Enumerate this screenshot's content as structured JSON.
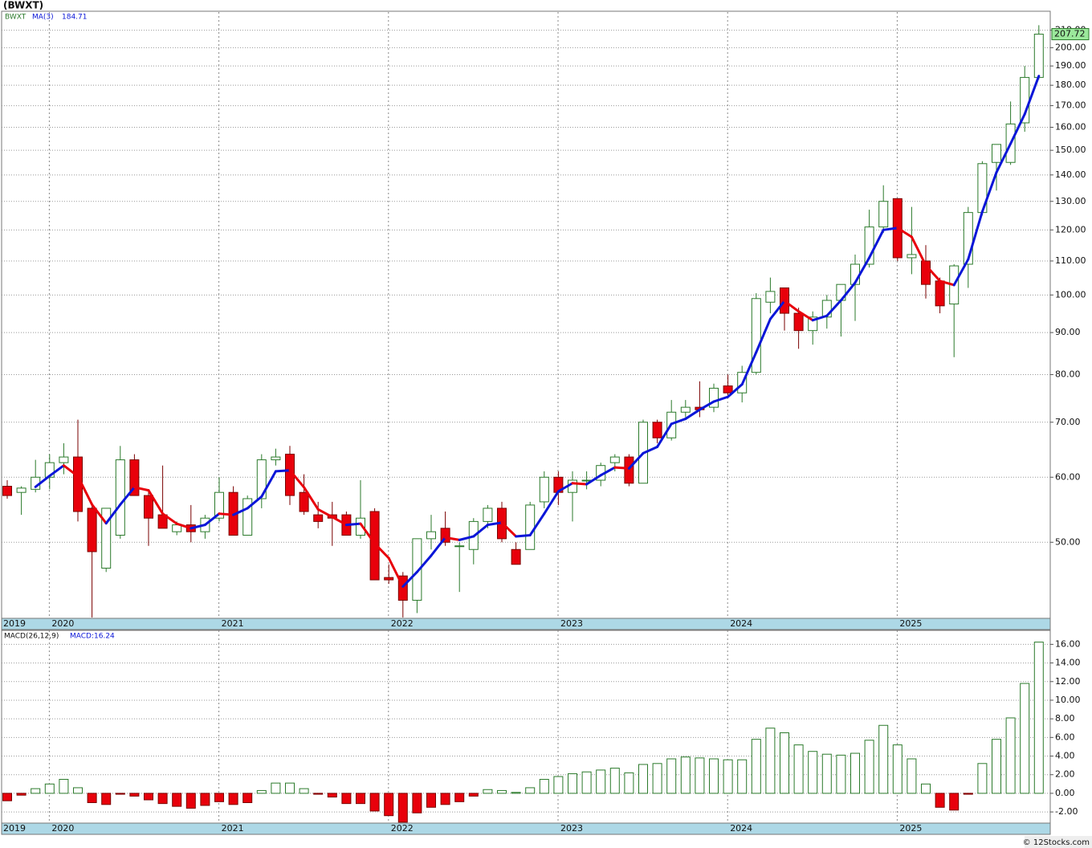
{
  "chart_data": [
    {
      "type": "candlestick",
      "title": "(BWXT)",
      "legend": "BWXT",
      "log": true,
      "grid": true,
      "categories": [
        "2019",
        null,
        null,
        null,
        "2020",
        null,
        null,
        null,
        null,
        null,
        null,
        null,
        null,
        null,
        null,
        null,
        "2021",
        null,
        null,
        null,
        null,
        null,
        null,
        null,
        null,
        null,
        null,
        null,
        "2022",
        null,
        null,
        null,
        null,
        null,
        null,
        null,
        null,
        null,
        null,
        null,
        "2023",
        null,
        null,
        null,
        null,
        null,
        null,
        null,
        null,
        null,
        null,
        null,
        "2024",
        null,
        null,
        null,
        null,
        null,
        null,
        null,
        null,
        null,
        null,
        null,
        "2025",
        null,
        null,
        null,
        null,
        null,
        null,
        null,
        null,
        null
      ],
      "open": [
        58.5,
        57.5,
        58,
        60,
        62.5,
        63.5,
        55,
        46.5,
        51,
        63,
        57,
        54,
        51.5,
        52.5,
        51.5,
        53.5,
        57.5,
        51,
        56.5,
        63,
        64,
        57.5,
        54,
        54,
        54,
        51,
        54.5,
        45.3,
        45.5,
        42.5,
        50.5,
        52,
        49.5,
        49,
        53,
        55,
        49,
        49,
        56,
        60,
        57.5,
        59.5,
        59.5,
        62.5,
        63.5,
        59,
        70,
        67,
        72,
        73,
        73,
        77.5,
        76,
        80.5,
        98,
        102,
        95,
        90.5,
        94,
        98.5,
        103,
        109,
        121,
        131,
        111,
        110,
        104,
        97.5,
        109,
        126,
        145,
        145,
        162,
        184
      ],
      "high": [
        59.5,
        58.5,
        63,
        64,
        66,
        70.5,
        55.5,
        55,
        65.5,
        64,
        58,
        62,
        53,
        55.5,
        54,
        60,
        58.5,
        57,
        64,
        65,
        65.5,
        60.5,
        56,
        56,
        54.5,
        59.5,
        55,
        47,
        46,
        50.5,
        54,
        54.5,
        50,
        53.5,
        55.5,
        56,
        50,
        56,
        61,
        61,
        61,
        61,
        62.5,
        64,
        64,
        70.5,
        70.5,
        74.5,
        74.5,
        78.5,
        78,
        80,
        82,
        100.5,
        105,
        102,
        96.5,
        95.5,
        100,
        102,
        112,
        127,
        136,
        131,
        128,
        115,
        105,
        109,
        128,
        145.5,
        152,
        172,
        190,
        213
      ],
      "low": [
        56.5,
        54,
        57.5,
        58,
        60.5,
        53,
        40.5,
        46,
        50.5,
        57,
        49.5,
        52,
        51,
        50,
        50.5,
        53,
        51,
        51,
        55,
        62,
        55.5,
        54,
        52,
        49.5,
        51,
        50.5,
        45,
        44.5,
        40.5,
        41,
        49,
        49.5,
        43.5,
        47,
        52,
        50,
        47,
        49,
        55,
        55.5,
        53,
        58,
        58.5,
        61,
        58.5,
        59,
        66,
        66.5,
        71,
        71,
        72,
        75.5,
        74,
        80,
        95,
        90.5,
        86,
        87,
        91,
        89,
        93,
        108,
        119,
        110,
        106,
        99,
        95,
        84,
        102,
        125,
        134,
        144,
        158,
        183
      ],
      "close": [
        57,
        58.2,
        60,
        62.5,
        63.5,
        54.5,
        48.7,
        55,
        63,
        57,
        53.5,
        52,
        52.5,
        51.5,
        53.5,
        57.5,
        51,
        56.5,
        63,
        63.5,
        57,
        54.5,
        53,
        53.5,
        51,
        53.5,
        45,
        45,
        42.5,
        50.5,
        51.5,
        50,
        49.5,
        53,
        55,
        50.5,
        47,
        55.5,
        60,
        57.5,
        59.5,
        59.5,
        62,
        63.5,
        59,
        70,
        67,
        72,
        73,
        72.5,
        77,
        76,
        80.5,
        99,
        101,
        95,
        90.5,
        94,
        98.5,
        103,
        109,
        121,
        130,
        111,
        112,
        103,
        97,
        108.5,
        126,
        144.5,
        152.5,
        161.5,
        184,
        207.72
      ],
      "up_color": "#2b7a2b",
      "down_color": "#e8000b",
      "ma": {
        "name": "MA(3)",
        "rising_color": "#0a16d8",
        "falling_color": "#e8000b",
        "values": [
          null,
          null,
          58.4,
          60.23,
          62,
          60.17,
          55.57,
          52.73,
          55.57,
          58.33,
          57.83,
          54.17,
          52.67,
          52,
          52.5,
          54.17,
          54,
          55,
          56.83,
          61,
          61.17,
          58.33,
          54.83,
          53.67,
          52.5,
          52.67,
          49.83,
          47.83,
          44.17,
          46,
          48.17,
          50.67,
          50.33,
          50.83,
          52.5,
          52.83,
          50.83,
          51,
          54.17,
          57.67,
          59,
          58.83,
          60.33,
          61.67,
          61.5,
          64.17,
          65.33,
          69.67,
          70.67,
          72.5,
          74.17,
          75.17,
          77.83,
          85.17,
          93.5,
          98.33,
          95.5,
          93.17,
          94.33,
          98.5,
          103.5,
          111,
          120,
          120.67,
          117.67,
          108.67,
          104,
          102.83,
          110.5,
          126.33,
          141,
          152.83,
          166,
          184.71
        ]
      },
      "ylim": [
        40.4,
        221
      ],
      "yticks": [
        {
          "value": 50,
          "label": "50.00"
        },
        {
          "value": 60,
          "label": "60.00"
        },
        {
          "value": 70,
          "label": "70.00"
        },
        {
          "value": 80,
          "label": "80.00"
        },
        {
          "value": 90,
          "label": "90.00"
        },
        {
          "value": 100,
          "label": "100.00"
        },
        {
          "value": 110,
          "label": "110.00"
        },
        {
          "value": 120,
          "label": "120.00"
        },
        {
          "value": 130,
          "label": "130.00"
        },
        {
          "value": 140,
          "label": "140.00"
        },
        {
          "value": 150,
          "label": "150.00"
        },
        {
          "value": 160,
          "label": "160.00"
        },
        {
          "value": 170,
          "label": "170.00"
        },
        {
          "value": 180,
          "label": "180.00"
        },
        {
          "value": 190,
          "label": "190.00"
        },
        {
          "value": 200,
          "label": "200.00"
        },
        {
          "value": 210,
          "label": "210.00"
        }
      ]
    },
    {
      "type": "bar",
      "title": "MACD(26,12,9)",
      "grid": true,
      "categories": [
        "2019",
        null,
        null,
        null,
        "2020",
        null,
        null,
        null,
        null,
        null,
        null,
        null,
        null,
        null,
        null,
        null,
        "2021",
        null,
        null,
        null,
        null,
        null,
        null,
        null,
        null,
        null,
        null,
        null,
        "2022",
        null,
        null,
        null,
        null,
        null,
        null,
        null,
        null,
        null,
        null,
        null,
        "2023",
        null,
        null,
        null,
        null,
        null,
        null,
        null,
        null,
        null,
        null,
        null,
        "2024",
        null,
        null,
        null,
        null,
        null,
        null,
        null,
        null,
        null,
        null,
        null,
        "2025",
        null,
        null,
        null,
        null,
        null,
        null,
        null,
        null,
        null
      ],
      "series": [
        {
          "name": "MACD:16.24",
          "up_color": "#2b7a2b",
          "down_color": "#e8000b",
          "values": [
            -0.8,
            -0.2,
            0.5,
            1.0,
            1.5,
            0.6,
            -1.0,
            -1.2,
            -0.1,
            -0.3,
            -0.7,
            -1.1,
            -1.4,
            -1.6,
            -1.3,
            -0.9,
            -1.2,
            -1.0,
            0.3,
            1.1,
            1.1,
            0.5,
            -0.1,
            -0.4,
            -1.1,
            -1.1,
            -1.9,
            -2.4,
            -3.1,
            -2.1,
            -1.5,
            -1.2,
            -0.9,
            -0.3,
            0.4,
            0.3,
            0.1,
            0.6,
            1.5,
            1.8,
            2.1,
            2.3,
            2.5,
            2.7,
            2.2,
            3.1,
            3.2,
            3.7,
            3.9,
            3.8,
            3.7,
            3.6,
            3.6,
            5.8,
            7.0,
            6.5,
            5.2,
            4.5,
            4.2,
            4.1,
            4.3,
            5.7,
            7.3,
            5.2,
            3.7,
            1.0,
            -1.5,
            -1.8,
            -0.1,
            3.2,
            5.8,
            8.1,
            11.8,
            16.24
          ]
        }
      ],
      "ylim": [
        -3.2,
        17.5
      ],
      "yticks": [
        {
          "value": -2,
          "label": "-2.00"
        },
        {
          "value": 0,
          "label": "0.00"
        },
        {
          "value": 2,
          "label": "2.00"
        },
        {
          "value": 4,
          "label": "4.00"
        },
        {
          "value": 6,
          "label": "6.00"
        },
        {
          "value": 8,
          "label": "8.00"
        },
        {
          "value": 10,
          "label": "10.00"
        },
        {
          "value": 12,
          "label": "12.00"
        },
        {
          "value": 14,
          "label": "14.00"
        },
        {
          "value": 16,
          "label": "16.00"
        }
      ]
    }
  ],
  "footer": "© 12Stocks.com"
}
